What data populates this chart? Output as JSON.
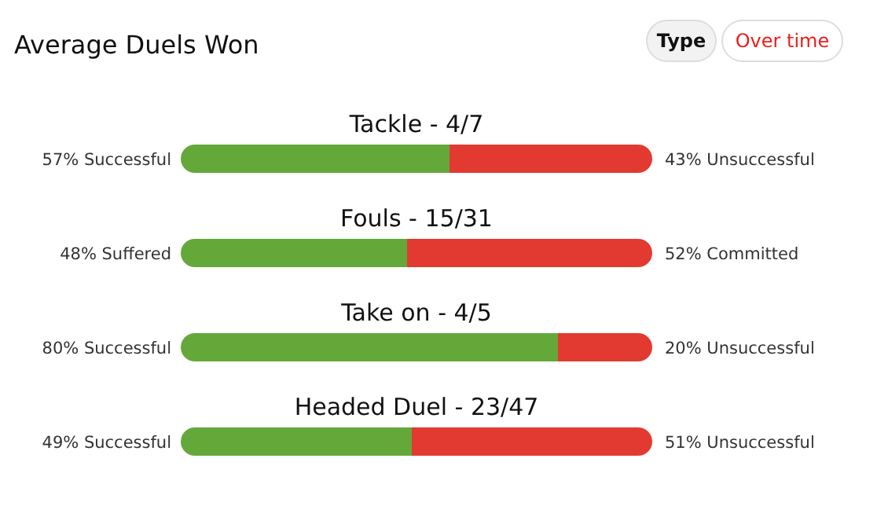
{
  "chart_data": {
    "type": "bar",
    "orientation": "horizontal",
    "stacked": true,
    "title": "Average Duels Won",
    "annotations": [
      "Type",
      "Over time"
    ],
    "categories": [
      "Tackle - 4/7",
      "Fouls - 15/31",
      "Take on - 4/5",
      "Headed Duel - 23/47"
    ],
    "series": [
      {
        "color": "#64a83a",
        "values": [
          57,
          48,
          80,
          49
        ],
        "value_labels": [
          "57% Successful",
          "48% Suffered",
          "80% Successful",
          "49% Successful"
        ]
      },
      {
        "color": "#e23a30",
        "values": [
          43,
          52,
          20,
          51
        ],
        "value_labels": [
          "43% Unsuccessful",
          "52% Committed",
          "20% Unsuccessful",
          "51% Unsuccessful"
        ]
      }
    ]
  }
}
